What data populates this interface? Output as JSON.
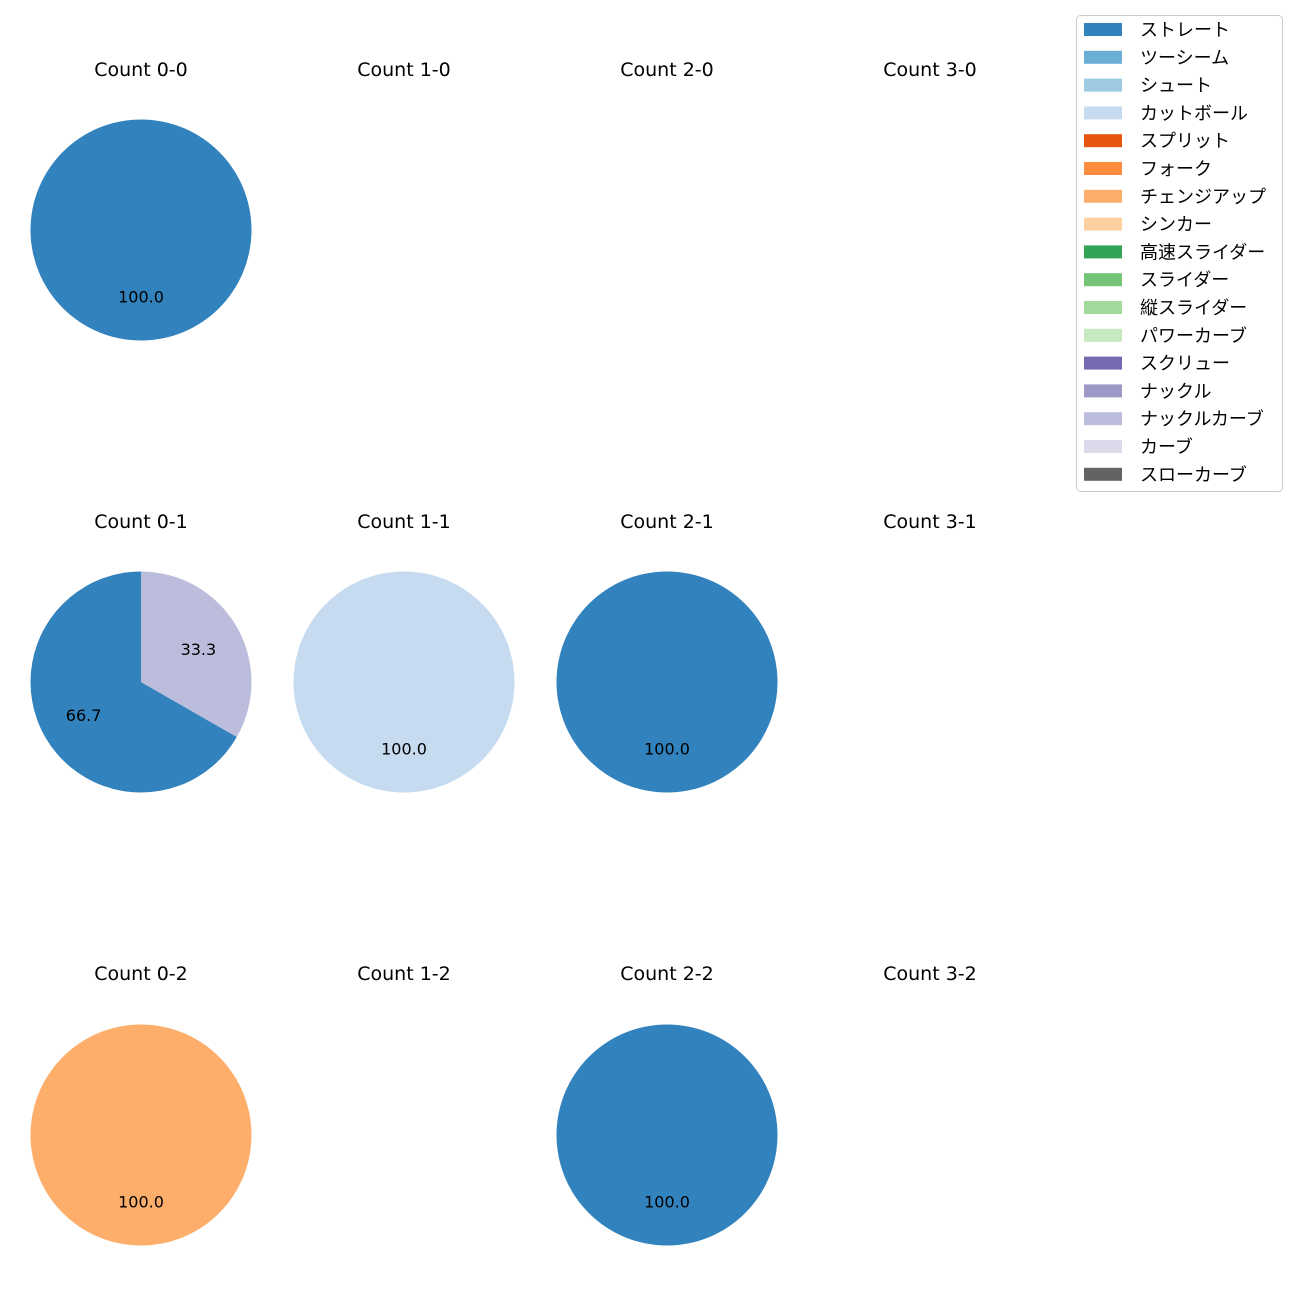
{
  "chart_data": {
    "type": "pie",
    "legend": {
      "placement": "top-right",
      "entries": [
        {
          "label": "ストレート",
          "color": "#3182bd"
        },
        {
          "label": "ツーシーム",
          "color": "#6baed6"
        },
        {
          "label": "シュート",
          "color": "#9ecae1"
        },
        {
          "label": "カットボール",
          "color": "#c6dbef"
        },
        {
          "label": "スプリット",
          "color": "#e6550d"
        },
        {
          "label": "フォーク",
          "color": "#fd8d3c"
        },
        {
          "label": "チェンジアップ",
          "color": "#fdae6b"
        },
        {
          "label": "シンカー",
          "color": "#fdd0a2"
        },
        {
          "label": "高速スライダー",
          "color": "#31a354"
        },
        {
          "label": "スライダー",
          "color": "#74c476"
        },
        {
          "label": "縦スライダー",
          "color": "#a1d99b"
        },
        {
          "label": "パワーカーブ",
          "color": "#c7e9c0"
        },
        {
          "label": "スクリュー",
          "color": "#756bb1"
        },
        {
          "label": "ナックル",
          "color": "#9e9ac8"
        },
        {
          "label": "ナックルカーブ",
          "color": "#bcbddc"
        },
        {
          "label": "カーブ",
          "color": "#dadaeb"
        },
        {
          "label": "スローカーブ",
          "color": "#636363"
        }
      ]
    },
    "subplots": [
      {
        "title": "Count 0-0",
        "slices": [
          {
            "pitch": "ストレート",
            "value": 100.0
          }
        ]
      },
      {
        "title": "Count 1-0",
        "slices": []
      },
      {
        "title": "Count 2-0",
        "slices": []
      },
      {
        "title": "Count 3-0",
        "slices": []
      },
      {
        "title": "Count 0-1",
        "slices": [
          {
            "pitch": "ストレート",
            "value": 66.7
          },
          {
            "pitch": "ナックルカーブ",
            "value": 33.3
          }
        ]
      },
      {
        "title": "Count 1-1",
        "slices": [
          {
            "pitch": "カットボール",
            "value": 100.0
          }
        ]
      },
      {
        "title": "Count 2-1",
        "slices": [
          {
            "pitch": "ストレート",
            "value": 100.0
          }
        ]
      },
      {
        "title": "Count 3-1",
        "slices": []
      },
      {
        "title": "Count 0-2",
        "slices": [
          {
            "pitch": "チェンジアップ",
            "value": 100.0
          }
        ]
      },
      {
        "title": "Count 1-2",
        "slices": []
      },
      {
        "title": "Count 2-2",
        "slices": [
          {
            "pitch": "ストレート",
            "value": 100.0
          }
        ]
      },
      {
        "title": "Count 3-2",
        "slices": []
      }
    ]
  }
}
